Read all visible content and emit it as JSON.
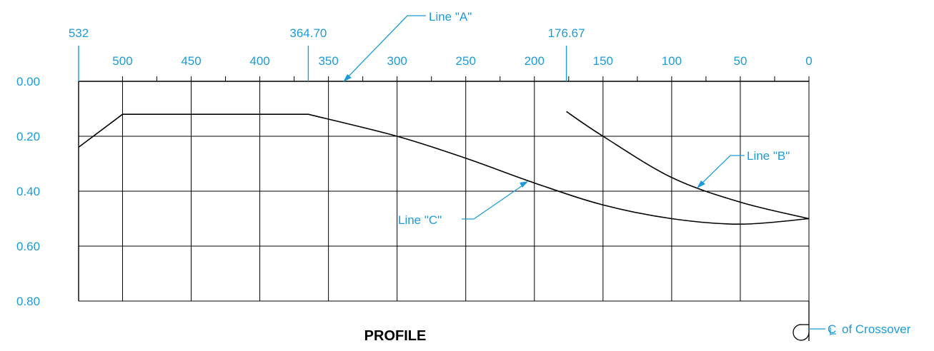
{
  "drawing": {
    "title": "PROFILE",
    "colors": {
      "annotation": "#1d9bd8",
      "lines": "#000000"
    }
  },
  "chart_data": {
    "type": "line",
    "x_ticks": [
      "500",
      "450",
      "400",
      "350",
      "300",
      "250",
      "200",
      "150",
      "100",
      "50",
      "0"
    ],
    "y_ticks": [
      "0.00",
      "0.20",
      "0.40",
      "0.60",
      "0.80"
    ],
    "xlim": [
      532,
      0
    ],
    "ylim": [
      0,
      0.8
    ],
    "grid": true,
    "markers": [
      {
        "label": "532",
        "x": 532
      },
      {
        "label": "364.70",
        "x": 364.7
      },
      {
        "label": "176.67",
        "x": 176.67
      }
    ],
    "series": [
      {
        "id": "profile",
        "x": [
          532,
          500,
          364.7,
          300,
          250,
          200,
          150,
          100,
          50,
          0
        ],
        "y": [
          0.24,
          0.12,
          0.12,
          0.2,
          0.28,
          0.37,
          0.45,
          0.5,
          0.52,
          0.5
        ]
      },
      {
        "id": "line-b",
        "x": [
          176.67,
          150,
          100,
          50,
          0
        ],
        "y": [
          0.11,
          0.2,
          0.35,
          0.44,
          0.5
        ]
      }
    ],
    "annotations": {
      "line_a": "Line \"A\"",
      "line_b": "Line \"B\"",
      "line_c": "Line \"C\"",
      "crossover_symbol": "C",
      "crossover_text": "of Crossover"
    }
  }
}
